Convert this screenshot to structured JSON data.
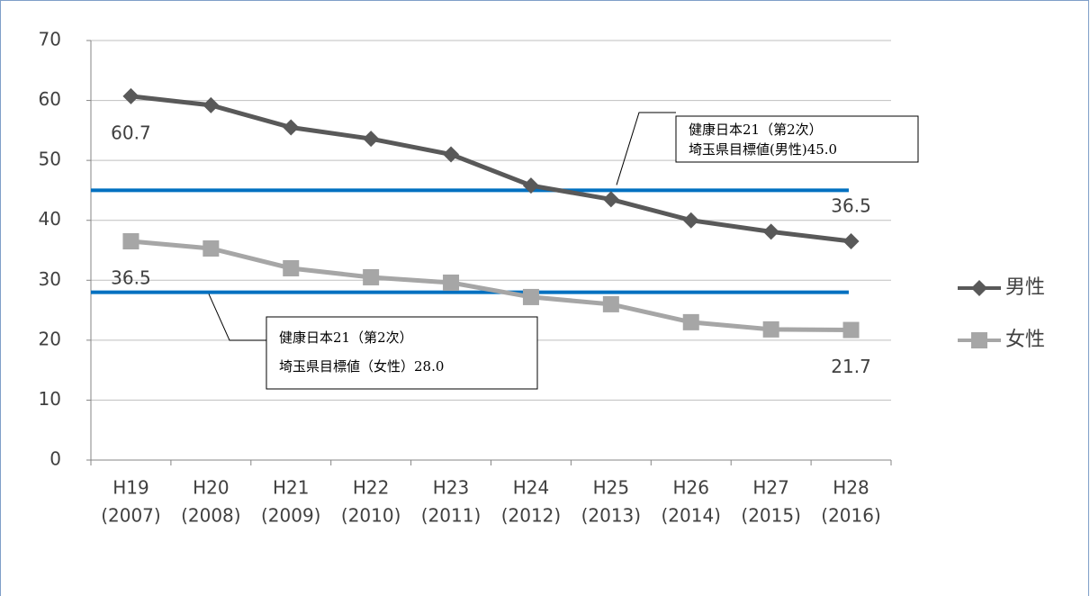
{
  "chart_data": {
    "type": "line",
    "categories": [
      [
        "H19",
        "(2007)"
      ],
      [
        "H20",
        "(2008)"
      ],
      [
        "H21",
        "(2009)"
      ],
      [
        "H22",
        "(2010)"
      ],
      [
        "H23",
        "(2011)"
      ],
      [
        "H24",
        "(2012)"
      ],
      [
        "H25",
        "(2013)"
      ],
      [
        "H26",
        "(2014)"
      ],
      [
        "H27",
        "(2015)"
      ],
      [
        "H28",
        "(2016)"
      ]
    ],
    "series": [
      {
        "name": "男性",
        "color": "#595959",
        "marker": "diamond",
        "values": [
          60.7,
          59.2,
          55.5,
          53.6,
          51.0,
          45.8,
          43.5,
          40.0,
          38.1,
          36.5
        ]
      },
      {
        "name": "女性",
        "color": "#a6a6a6",
        "marker": "square",
        "values": [
          36.5,
          35.3,
          32.0,
          30.5,
          29.6,
          27.2,
          26.0,
          23.0,
          21.8,
          21.7
        ]
      }
    ],
    "reference_lines": [
      {
        "value": 45.0,
        "color": "#0070c0",
        "lines": [
          "健康日本21（第2次）",
          "埼玉県目標値(男性)45.0"
        ]
      },
      {
        "value": 28.0,
        "color": "#0070c0",
        "lines": [
          "健康日本21（第2次）",
          "埼玉県目標値（女性）28.0"
        ]
      }
    ],
    "ylim": [
      0,
      70
    ],
    "yticks": [
      0,
      10,
      20,
      30,
      40,
      50,
      60,
      70
    ],
    "grid": true,
    "legend": "right"
  }
}
